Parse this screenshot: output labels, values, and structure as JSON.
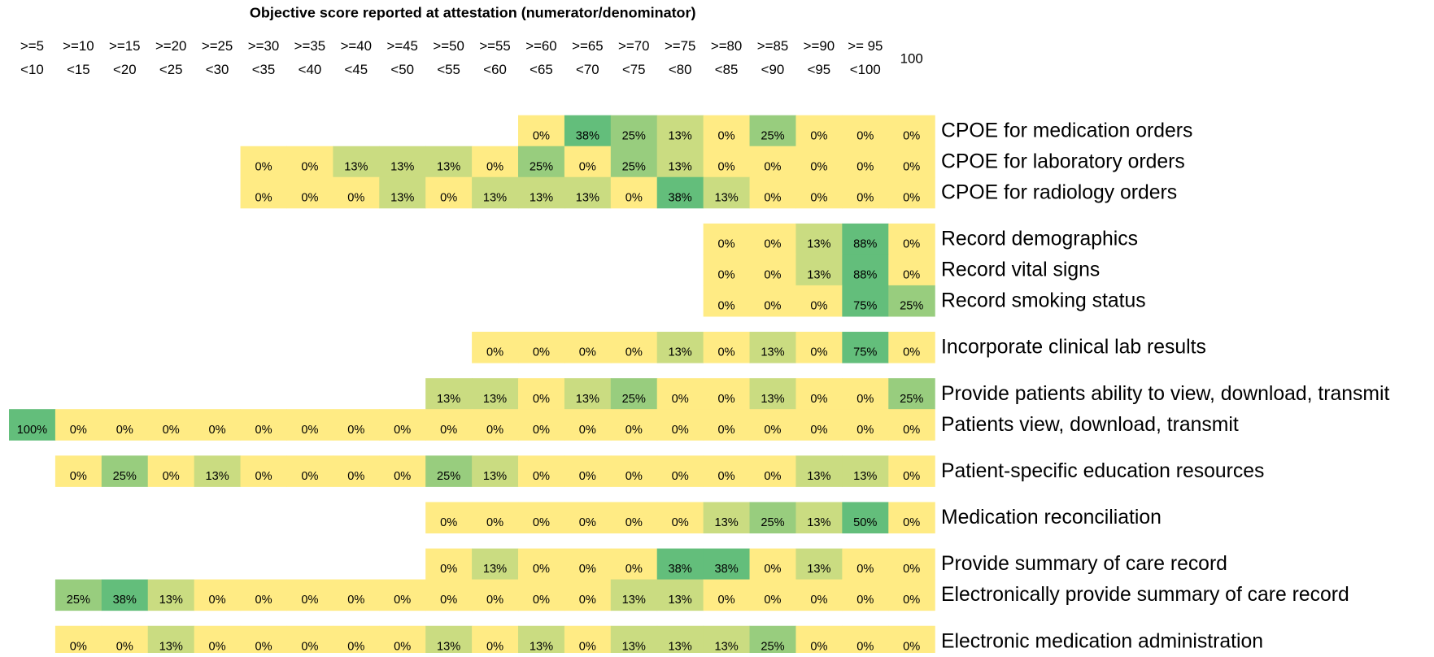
{
  "title": "Objective score reported at attestation (numerator/denominator)",
  "columns": [
    [
      ">=5",
      "<10"
    ],
    [
      ">=10",
      "<15"
    ],
    [
      ">=15",
      "<20"
    ],
    [
      ">=20",
      "<25"
    ],
    [
      ">=25",
      "<30"
    ],
    [
      ">=30",
      "<35"
    ],
    [
      ">=35",
      "<40"
    ],
    [
      ">=40",
      "<45"
    ],
    [
      ">=45",
      "<50"
    ],
    [
      ">=50",
      "<55"
    ],
    [
      ">=55",
      "<60"
    ],
    [
      ">=60",
      "<65"
    ],
    [
      ">=65",
      "<70"
    ],
    [
      ">=70",
      "<75"
    ],
    [
      ">=75",
      "<80"
    ],
    [
      ">=80",
      "<85"
    ],
    [
      ">=85",
      "<90"
    ],
    [
      ">=90",
      "<95"
    ],
    [
      ">= 95",
      "<100"
    ],
    [
      "100"
    ]
  ],
  "groups": [
    [
      {
        "label": "CPOE for medication orders",
        "cells": [
          null,
          null,
          null,
          null,
          null,
          null,
          null,
          null,
          null,
          null,
          null,
          "0%",
          "38%",
          "25%",
          "13%",
          "0%",
          "25%",
          "0%",
          "0%",
          "0%"
        ]
      },
      {
        "label": "CPOE for laboratory orders",
        "cells": [
          null,
          null,
          null,
          null,
          null,
          "0%",
          "0%",
          "13%",
          "13%",
          "13%",
          "0%",
          "25%",
          "0%",
          "25%",
          "13%",
          "0%",
          "0%",
          "0%",
          "0%",
          "0%"
        ]
      },
      {
        "label": "CPOE for radiology orders",
        "cells": [
          null,
          null,
          null,
          null,
          null,
          "0%",
          "0%",
          "0%",
          "13%",
          "0%",
          "13%",
          "13%",
          "13%",
          "0%",
          "38%",
          "13%",
          "0%",
          "0%",
          "0%",
          "0%"
        ]
      }
    ],
    [
      {
        "label": "Record demographics",
        "cells": [
          null,
          null,
          null,
          null,
          null,
          null,
          null,
          null,
          null,
          null,
          null,
          null,
          null,
          null,
          null,
          "0%",
          "0%",
          "13%",
          "88%",
          "0%"
        ]
      },
      {
        "label": "Record vital signs",
        "cells": [
          null,
          null,
          null,
          null,
          null,
          null,
          null,
          null,
          null,
          null,
          null,
          null,
          null,
          null,
          null,
          "0%",
          "0%",
          "13%",
          "88%",
          "0%"
        ]
      },
      {
        "label": "Record smoking status",
        "cells": [
          null,
          null,
          null,
          null,
          null,
          null,
          null,
          null,
          null,
          null,
          null,
          null,
          null,
          null,
          null,
          "0%",
          "0%",
          "0%",
          "75%",
          "25%"
        ]
      }
    ],
    [
      {
        "label": "Incorporate clinical lab results",
        "cells": [
          null,
          null,
          null,
          null,
          null,
          null,
          null,
          null,
          null,
          null,
          "0%",
          "0%",
          "0%",
          "0%",
          "13%",
          "0%",
          "13%",
          "0%",
          "75%",
          "0%"
        ]
      }
    ],
    [
      {
        "label": "Provide patients ability to view, download, transmit",
        "cells": [
          null,
          null,
          null,
          null,
          null,
          null,
          null,
          null,
          null,
          "13%",
          "13%",
          "0%",
          "13%",
          "25%",
          "0%",
          "0%",
          "13%",
          "0%",
          "0%",
          "25%"
        ]
      },
      {
        "label": "Patients view, download, transmit",
        "cells": [
          "100%",
          "0%",
          "0%",
          "0%",
          "0%",
          "0%",
          "0%",
          "0%",
          "0%",
          "0%",
          "0%",
          "0%",
          "0%",
          "0%",
          "0%",
          "0%",
          "0%",
          "0%",
          "0%",
          "0%"
        ]
      }
    ],
    [
      {
        "label": "Patient-specific education resources",
        "cells": [
          null,
          "0%",
          "25%",
          "0%",
          "13%",
          "0%",
          "0%",
          "0%",
          "0%",
          "25%",
          "13%",
          "0%",
          "0%",
          "0%",
          "0%",
          "0%",
          "0%",
          "13%",
          "13%",
          "0%"
        ]
      }
    ],
    [
      {
        "label": "Medication reconciliation",
        "cells": [
          null,
          null,
          null,
          null,
          null,
          null,
          null,
          null,
          null,
          "0%",
          "0%",
          "0%",
          "0%",
          "0%",
          "0%",
          "13%",
          "25%",
          "13%",
          "50%",
          "0%"
        ]
      }
    ],
    [
      {
        "label": "Provide summary of care record",
        "cells": [
          null,
          null,
          null,
          null,
          null,
          null,
          null,
          null,
          null,
          "0%",
          "13%",
          "0%",
          "0%",
          "0%",
          "38%",
          "38%",
          "0%",
          "13%",
          "0%",
          "0%"
        ]
      },
      {
        "label": "Electronically provide summary of care record",
        "cells": [
          null,
          "25%",
          "38%",
          "13%",
          "0%",
          "0%",
          "0%",
          "0%",
          "0%",
          "0%",
          "0%",
          "0%",
          "0%",
          "13%",
          "13%",
          "0%",
          "0%",
          "0%",
          "0%",
          "0%"
        ]
      }
    ],
    [
      {
        "label": "Electronic medication administration",
        "cells": [
          null,
          "0%",
          "0%",
          "13%",
          "0%",
          "0%",
          "0%",
          "0%",
          "0%",
          "13%",
          "0%",
          "13%",
          "0%",
          "13%",
          "13%",
          "13%",
          "25%",
          "0%",
          "0%",
          "0%"
        ]
      }
    ]
  ]
}
